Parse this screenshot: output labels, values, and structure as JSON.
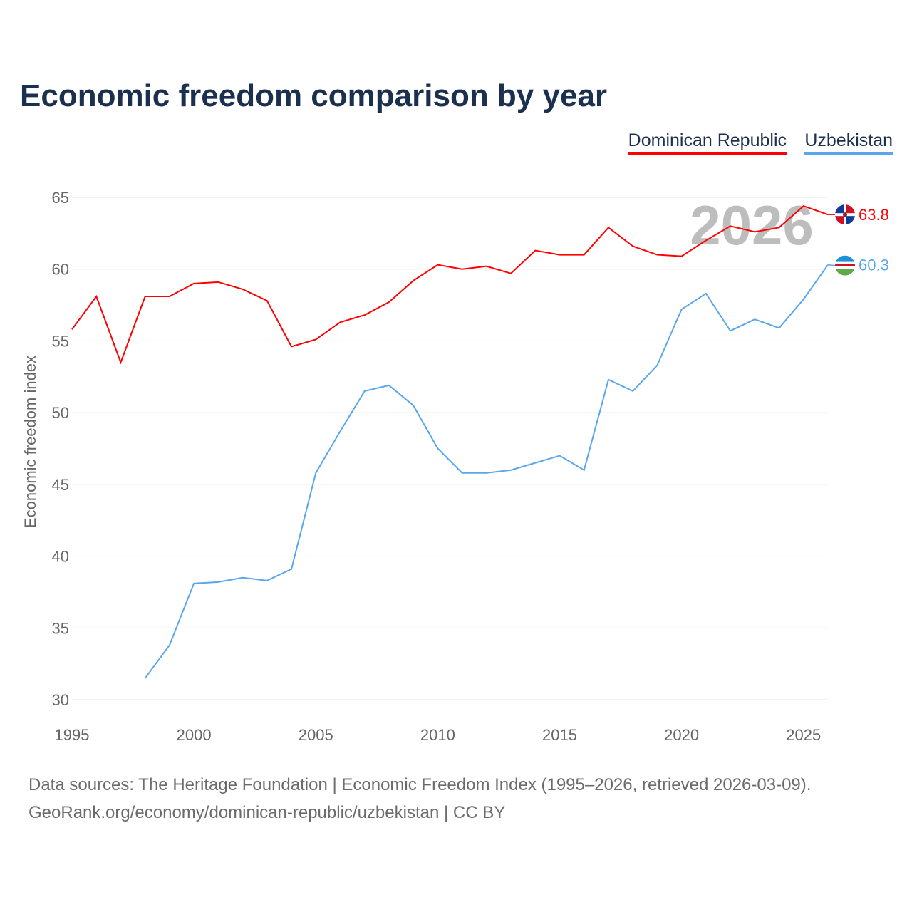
{
  "title": "Economic freedom comparison by year",
  "footer": {
    "line1": "Data sources: The Heritage Foundation | Economic Freedom Index (1995–2026, retrieved 2026-03-09).",
    "line2": "GeoRank.org/economy/dominican-republic/uzbekistan | CC BY"
  },
  "chart_data": {
    "type": "line",
    "title": "Economic freedom comparison by year",
    "xlabel": "",
    "ylabel": "Economic freedom index",
    "xlim": [
      1995,
      2026
    ],
    "ylim": [
      30,
      65
    ],
    "x_ticks": [
      "1995",
      "2000",
      "2005",
      "2010",
      "2015",
      "2020",
      "2025"
    ],
    "y_ticks": [
      "30",
      "35",
      "40",
      "45",
      "50",
      "55",
      "60",
      "65"
    ],
    "grid": true,
    "legend_position": "top-right",
    "year_watermark": "2026",
    "series": [
      {
        "name": "Dominican Republic",
        "color": "#ff0000",
        "end_label": "63.8",
        "x": [
          1995,
          1996,
          1997,
          1998,
          1999,
          2000,
          2001,
          2002,
          2003,
          2004,
          2005,
          2006,
          2007,
          2008,
          2009,
          2010,
          2011,
          2012,
          2013,
          2014,
          2015,
          2016,
          2017,
          2018,
          2019,
          2020,
          2021,
          2022,
          2023,
          2024,
          2025,
          2026
        ],
        "values": [
          55.8,
          58.1,
          53.5,
          58.1,
          58.1,
          59.0,
          59.1,
          58.6,
          57.8,
          54.6,
          55.1,
          56.3,
          56.8,
          57.7,
          59.2,
          60.3,
          60.0,
          60.2,
          59.7,
          61.3,
          61.0,
          61.0,
          62.9,
          61.6,
          61.0,
          60.9,
          62.0,
          63.0,
          62.6,
          62.9,
          64.4,
          63.8
        ]
      },
      {
        "name": "Uzbekistan",
        "color": "#5aa6ec",
        "end_label": "60.3",
        "x": [
          1998,
          1999,
          2000,
          2001,
          2002,
          2003,
          2004,
          2005,
          2006,
          2007,
          2008,
          2009,
          2010,
          2011,
          2012,
          2013,
          2014,
          2015,
          2016,
          2017,
          2018,
          2019,
          2020,
          2021,
          2022,
          2023,
          2024,
          2025,
          2026
        ],
        "values": [
          31.5,
          33.8,
          38.1,
          38.2,
          38.5,
          38.3,
          39.1,
          45.8,
          48.7,
          51.5,
          51.9,
          50.5,
          47.5,
          45.8,
          45.8,
          46.0,
          46.5,
          47.0,
          46.0,
          52.3,
          51.5,
          53.3,
          57.2,
          58.3,
          55.7,
          56.5,
          55.9,
          57.9,
          60.3
        ]
      }
    ]
  }
}
